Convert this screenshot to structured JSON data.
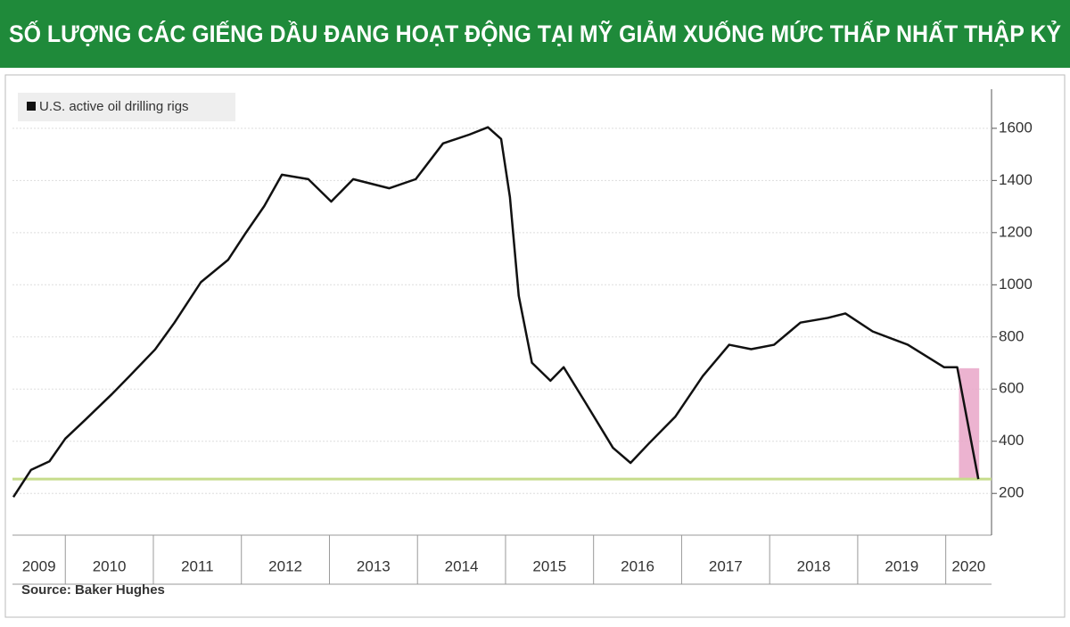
{
  "chart_data": {
    "type": "line",
    "title": "SỐ LƯỢNG CÁC GIẾNG DẦU ĐANG HOẠT ĐỘNG TẠI MỸ GIẢM XUỐNG MỨC THẤP NHẤT THẬP KỶ",
    "source": "Source: Baker Hughes",
    "legend_position": "top-left",
    "grid": true,
    "xlim": [
      2009.4,
      2020.52
    ],
    "ylim": [
      40,
      1750
    ],
    "yticks": [
      200,
      400,
      600,
      800,
      1000,
      1200,
      1400,
      1600
    ],
    "xticks": [
      {
        "value": 2009,
        "label": "2009"
      },
      {
        "value": 2010,
        "label": "2010"
      },
      {
        "value": 2011,
        "label": "2011"
      },
      {
        "value": 2012,
        "label": "2012"
      },
      {
        "value": 2013,
        "label": "2013"
      },
      {
        "value": 2014,
        "label": "2014"
      },
      {
        "value": 2015,
        "label": "2015"
      },
      {
        "value": 2016,
        "label": "2016"
      },
      {
        "value": 2017,
        "label": "2017"
      },
      {
        "value": 2018,
        "label": "2018"
      },
      {
        "value": 2019,
        "label": "2019"
      },
      {
        "value": 2020,
        "label": "2020"
      }
    ],
    "reference_line": {
      "value": 255,
      "color": "#c6dc8c"
    },
    "highlight": {
      "x": [
        2020.15,
        2020.38
      ],
      "y": [
        255,
        680
      ],
      "color": "#e9a6c8"
    },
    "series": [
      {
        "name": "U.S. active oil drilling rigs",
        "color": "#111111",
        "x": [
          2009.41,
          2009.61,
          2009.82,
          2010.0,
          2010.22,
          2010.53,
          2010.73,
          2011.02,
          2011.24,
          2011.54,
          2011.85,
          2012.05,
          2012.26,
          2012.46,
          2012.76,
          2013.02,
          2013.27,
          2013.68,
          2013.98,
          2014.29,
          2014.59,
          2014.8,
          2014.95,
          2015.05,
          2015.15,
          2015.3,
          2015.51,
          2015.66,
          2015.91,
          2016.22,
          2016.42,
          2016.63,
          2016.93,
          2017.24,
          2017.54,
          2017.79,
          2018.05,
          2018.35,
          2018.66,
          2018.86,
          2019.17,
          2019.57,
          2019.98,
          2020.13,
          2020.37
        ],
        "values": [
          186,
          290,
          323,
          410,
          480,
          581,
          650,
          752,
          855,
          1010,
          1096,
          1199,
          1302,
          1422,
          1405,
          1319,
          1405,
          1370,
          1405,
          1542,
          1576,
          1604,
          1559,
          1336,
          958,
          701,
          632,
          684,
          547,
          375,
          317,
          392,
          495,
          650,
          770,
          753,
          770,
          855,
          873,
          890,
          821,
          770,
          684,
          684,
          255
        ]
      }
    ]
  }
}
